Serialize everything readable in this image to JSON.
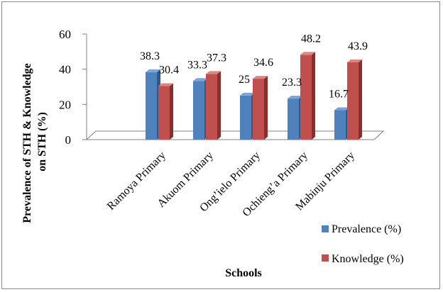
{
  "chart_data": {
    "type": "bar",
    "title": "",
    "xlabel": "Schools",
    "ylabel": "Prevalence of STH & Knowledge on STH (%)",
    "ylabel_lines": [
      "Prevalence of STH & Knowledge",
      "on STH (%)"
    ],
    "ylim": [
      0,
      60
    ],
    "yticks": [
      "0",
      "20",
      "40",
      "60"
    ],
    "categories": [
      "Ramoya Primary",
      "Akuom Primary",
      "Ong’ielo Primary",
      "Ochieng’a Primary",
      "Mabinju Primary"
    ],
    "series": [
      {
        "name": "Prevalence (%)",
        "values": [
          38.3,
          33.3,
          25,
          23.3,
          16.7
        ],
        "labels": [
          "38.3",
          "33.3",
          "25",
          "23.3",
          "16.7"
        ],
        "color": "#4f81bd",
        "side_color": "#2e5a8c",
        "top_color": "#7da3d6"
      },
      {
        "name": "Knowledge (%)",
        "values": [
          30.4,
          37.3,
          34.6,
          48.2,
          43.9
        ],
        "labels": [
          "30.4",
          "37.3",
          "34.6",
          "48.2",
          "43.9"
        ],
        "color": "#c0504d",
        "side_color": "#8b2e2c",
        "top_color": "#d98784"
      }
    ],
    "grid": false,
    "legend_position": "bottom-right"
  }
}
